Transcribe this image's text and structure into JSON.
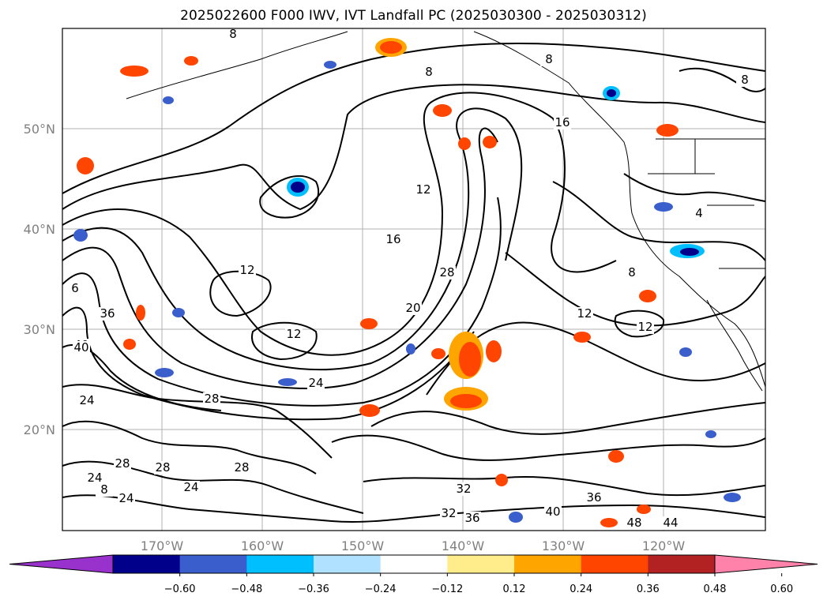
{
  "title": "2025022600 F000 IWV, IVT Landfall PC (2025030300 - 2025030312)",
  "map": {
    "lat_ticks": [
      "20°N",
      "30°N",
      "40°N",
      "50°N"
    ],
    "lon_ticks": [
      "170°W",
      "160°W",
      "150°W",
      "140°W",
      "130°W",
      "120°W"
    ],
    "grid": true,
    "contour_field": "IWV",
    "contour_labels": [
      "8",
      "8",
      "16",
      "12",
      "16",
      "12",
      "28",
      "20",
      "12",
      "12",
      "24",
      "28",
      "36",
      "40",
      "24",
      "28",
      "24",
      "28",
      "8",
      "24",
      "28",
      "24",
      "32",
      "32",
      "36",
      "40",
      "36",
      "48",
      "44",
      "8",
      "4",
      "8",
      "12",
      "40",
      "8",
      "6"
    ]
  },
  "colorbar": {
    "extend": "both",
    "bins": [
      {
        "color": "#9932CC"
      },
      {
        "color": "#00008B"
      },
      {
        "color": "#3A5FCD"
      },
      {
        "color": "#00BFFF"
      },
      {
        "color": "#B0E2FF"
      },
      {
        "color": "#FFFFFF"
      },
      {
        "color": "#FFEC8B"
      },
      {
        "color": "#FFA500"
      },
      {
        "color": "#FF4500"
      },
      {
        "color": "#B22222"
      },
      {
        "color": "#FF82AB"
      }
    ],
    "tick_labels": [
      "−0.60",
      "−0.48",
      "−0.36",
      "−0.24",
      "−0.12",
      "0.12",
      "0.24",
      "0.36",
      "0.48",
      "0.60"
    ]
  }
}
